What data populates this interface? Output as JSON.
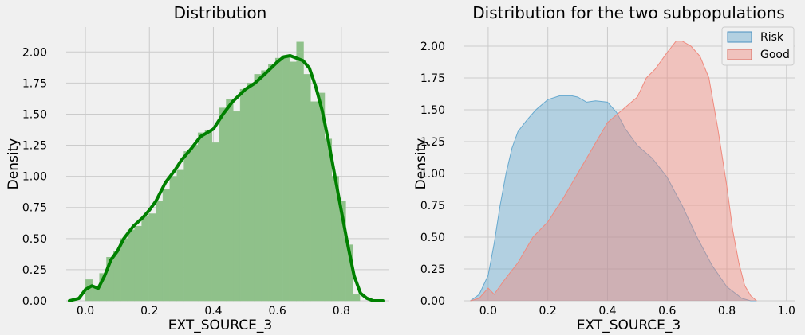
{
  "chart_data": [
    {
      "type": "histogram+kde",
      "title": "Distribution",
      "xlabel": "EXT_SOURCE_3",
      "ylabel": "Density",
      "xlim": [
        -0.06,
        0.95
      ],
      "ylim": [
        0,
        2.2
      ],
      "xticks": [
        0.0,
        0.2,
        0.4,
        0.6,
        0.8
      ],
      "xtick_labels": [
        "0.0",
        "0.2",
        "0.4",
        "0.6",
        "0.8"
      ],
      "yticks": [
        0,
        0.25,
        0.5,
        0.75,
        1.0,
        1.25,
        1.5,
        1.75,
        2.0
      ],
      "ytick_labels": [
        "0.00",
        "0.25",
        "0.50",
        "0.75",
        "1.00",
        "1.25",
        "1.50",
        "1.75",
        "2.00"
      ],
      "grid": true,
      "colors": {
        "bars": "#8fc18a",
        "kde": "#008000"
      },
      "bins": {
        "edges": [
          0.0,
          0.022,
          0.044,
          0.066,
          0.088,
          0.11,
          0.132,
          0.154,
          0.176,
          0.198,
          0.22,
          0.242,
          0.264,
          0.286,
          0.308,
          0.33,
          0.352,
          0.374,
          0.396,
          0.418,
          0.44,
          0.462,
          0.484,
          0.506,
          0.528,
          0.55,
          0.572,
          0.594,
          0.616,
          0.638,
          0.66,
          0.682,
          0.704,
          0.726,
          0.748,
          0.77,
          0.792,
          0.814,
          0.836,
          0.858
        ],
        "values": [
          0.17,
          0.1,
          0.22,
          0.35,
          0.4,
          0.5,
          0.57,
          0.6,
          0.68,
          0.7,
          0.8,
          0.9,
          1.0,
          1.05,
          1.2,
          1.25,
          1.35,
          1.37,
          1.27,
          1.55,
          1.62,
          1.52,
          1.7,
          1.75,
          1.82,
          1.85,
          1.9,
          1.95,
          1.97,
          1.92,
          2.08,
          1.82,
          1.6,
          1.67,
          1.3,
          1.0,
          0.8,
          0.45,
          0.05
        ]
      },
      "kde": {
        "x": [
          -0.05,
          -0.02,
          0.0,
          0.02,
          0.04,
          0.06,
          0.08,
          0.1,
          0.12,
          0.15,
          0.18,
          0.2,
          0.22,
          0.25,
          0.28,
          0.3,
          0.33,
          0.36,
          0.4,
          0.43,
          0.46,
          0.5,
          0.53,
          0.56,
          0.6,
          0.62,
          0.64,
          0.66,
          0.68,
          0.7,
          0.72,
          0.74,
          0.76,
          0.78,
          0.8,
          0.82,
          0.84,
          0.86,
          0.88,
          0.9,
          0.93
        ],
        "y": [
          0.0,
          0.02,
          0.09,
          0.12,
          0.1,
          0.2,
          0.33,
          0.4,
          0.5,
          0.6,
          0.67,
          0.73,
          0.8,
          0.95,
          1.05,
          1.13,
          1.22,
          1.32,
          1.38,
          1.5,
          1.6,
          1.7,
          1.75,
          1.82,
          1.92,
          1.96,
          1.97,
          1.95,
          1.93,
          1.87,
          1.72,
          1.53,
          1.28,
          1.0,
          0.72,
          0.45,
          0.2,
          0.06,
          0.02,
          0.0,
          0.0
        ]
      }
    },
    {
      "type": "kde",
      "title": "Distribution for the two subpopulations",
      "xlabel": "EXT_SOURCE_3",
      "ylabel": "Density",
      "xlim": [
        -0.08,
        1.03
      ],
      "ylim": [
        0,
        2.15
      ],
      "xticks": [
        0.0,
        0.2,
        0.4,
        0.6,
        0.8,
        1.0
      ],
      "xtick_labels": [
        "0.0",
        "0.2",
        "0.4",
        "0.6",
        "0.8",
        "1.0"
      ],
      "yticks": [
        0,
        0.25,
        0.5,
        0.75,
        1.0,
        1.25,
        1.5,
        1.75,
        2.0
      ],
      "ytick_labels": [
        "0.00",
        "0.25",
        "0.50",
        "0.75",
        "1.00",
        "1.25",
        "1.50",
        "1.75",
        "2.00"
      ],
      "grid": true,
      "legend": {
        "placement": "top-right"
      },
      "series": [
        {
          "name": "Risk",
          "color": "#67a9cf",
          "x": [
            -0.06,
            -0.03,
            0.0,
            0.02,
            0.04,
            0.06,
            0.08,
            0.1,
            0.13,
            0.16,
            0.2,
            0.24,
            0.28,
            0.3,
            0.33,
            0.36,
            0.4,
            0.43,
            0.46,
            0.5,
            0.55,
            0.6,
            0.65,
            0.7,
            0.75,
            0.8,
            0.85,
            0.88,
            0.9
          ],
          "y": [
            0.0,
            0.05,
            0.2,
            0.45,
            0.75,
            1.0,
            1.2,
            1.33,
            1.42,
            1.5,
            1.58,
            1.61,
            1.61,
            1.6,
            1.56,
            1.57,
            1.56,
            1.48,
            1.35,
            1.22,
            1.12,
            0.97,
            0.75,
            0.5,
            0.28,
            0.11,
            0.02,
            0.0,
            0.0
          ]
        },
        {
          "name": "Good",
          "color": "#ef8a7e",
          "x": [
            -0.06,
            -0.03,
            0.0,
            0.02,
            0.05,
            0.1,
            0.15,
            0.2,
            0.25,
            0.3,
            0.35,
            0.4,
            0.45,
            0.5,
            0.53,
            0.56,
            0.6,
            0.63,
            0.65,
            0.68,
            0.71,
            0.74,
            0.77,
            0.8,
            0.82,
            0.84,
            0.86,
            0.88,
            0.9
          ],
          "y": [
            0.0,
            0.02,
            0.1,
            0.05,
            0.15,
            0.3,
            0.5,
            0.62,
            0.8,
            1.0,
            1.2,
            1.4,
            1.5,
            1.6,
            1.75,
            1.82,
            1.95,
            2.04,
            2.04,
            2.0,
            1.92,
            1.75,
            1.35,
            0.9,
            0.55,
            0.3,
            0.12,
            0.04,
            0.0
          ]
        }
      ]
    }
  ]
}
